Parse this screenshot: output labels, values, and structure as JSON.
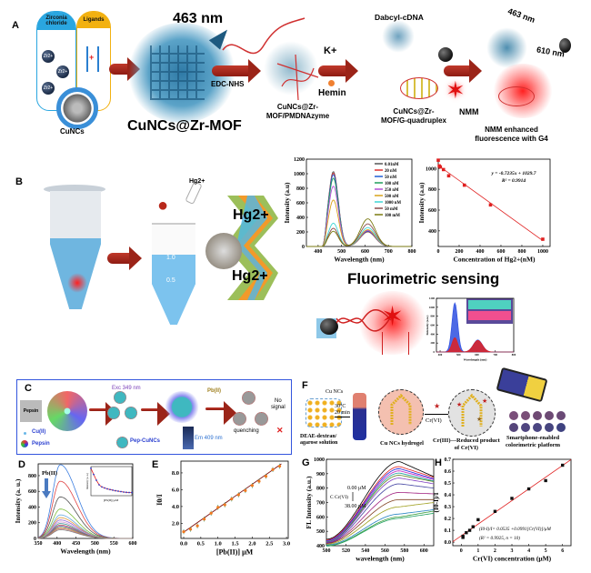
{
  "panel_a": {
    "label": "A",
    "zirconia_label": "Zirconia chloride",
    "ligands_label": "Ligands",
    "ion_label": "Zr2+",
    "cuncs_label": "CuNCs",
    "emission_463": "463 nm",
    "mof_label": "CuNCs@Zr-MOF",
    "edc_label": "EDC-NHS",
    "pmdnazyme_label": "CuNCs@Zr-\nMOF/PMDNAzyme",
    "k_label": "K+",
    "hemin_label": "Hemin",
    "gquad_label": "CuNCs@Zr-\nMOF/G-quadruplex",
    "dabcyl_label": "Dabcyl-cDNA",
    "nmm_label": "NMM",
    "final_463": "463 nm",
    "final_610": "610 nm",
    "final_label": "NMM enhanced\nfluorescence with G4"
  },
  "panel_b": {
    "label": "B",
    "hg_small": "Hg2+",
    "hg_big_1": "Hg2+",
    "hg_big_2": "Hg2+",
    "tube_mark_1": "1.0",
    "tube_mark_2": "0.5",
    "sensing_title": "Fluorimetric sensing"
  },
  "panel_c": {
    "label": "C",
    "pepsin_photo": "Pepsin",
    "exc_label": "Exc 349 nm",
    "pb_label": "Pb(II)",
    "no_signal": "No\nsignal",
    "quenching": "quenching",
    "em_label": "Em 409 nm",
    "legend_cu": "Cu(II)",
    "legend_pepsin": "Pepsin",
    "legend_pepcuncs": "Pep-CuNCs"
  },
  "panel_f": {
    "label": "F",
    "cu_ncs": "Cu NCs",
    "condition": "30°C\n20 min",
    "solution": "DEAE-dextran/\nagarose solution",
    "hydrogel": "Cu NCs hydrogel",
    "cr6": "Cr(VI)",
    "cr3": "Cr(III)—Reduced product\nof Cr(VI)",
    "platform": "Smartphone-enabled\ncolorimetric platform",
    "dot_colors": [
      "#7a4f7a",
      "#7a4f78",
      "#6f4a74",
      "#6c4a74",
      "#6a4a76",
      "#55457a",
      "#504680",
      "#4b4682",
      "#47457f",
      "#3f4280"
    ]
  },
  "colors": {
    "arrow": "#a8281b",
    "glow_blue": "#3f8fb8",
    "glow_red": "#ff2020",
    "panel_c_border": "#3355dd"
  },
  "chart_data": [
    {
      "id": "b1",
      "type": "line",
      "xlabel": "Wavelength (nm)",
      "ylabel": "Intensity (a.u)",
      "xlim": [
        350,
        800
      ],
      "ylim": [
        0,
        1200
      ],
      "xticks": [
        "400",
        "500",
        "600",
        "700",
        "800"
      ],
      "yticks": [
        "0",
        "200",
        "400",
        "600",
        "800",
        "1000",
        "1200"
      ],
      "legend": "top-right",
      "peak_wavelengths_nm": [
        465,
        612
      ],
      "series": [
        {
          "name": "0.01nM",
          "color": "#555555",
          "peaks": [
            1030,
            200
          ]
        },
        {
          "name": "20 nM",
          "color": "#e03030",
          "peaks": [
            1010,
            205
          ]
        },
        {
          "name": "50 nM",
          "color": "#1f5fd6",
          "peaks": [
            990,
            210
          ]
        },
        {
          "name": "100 nM",
          "color": "#1f9e5a",
          "peaks": [
            940,
            225
          ]
        },
        {
          "name": "250 nM",
          "color": "#b44fd6",
          "peaks": [
            830,
            220
          ]
        },
        {
          "name": "500 nM",
          "color": "#d9a21a",
          "peaks": [
            640,
            230
          ]
        },
        {
          "name": "1000 nM",
          "color": "#3fd6d6",
          "peaks": [
            320,
            260
          ]
        },
        {
          "name": "50 mM",
          "color": "#8a4a4a",
          "peaks": [
            250,
            310
          ]
        },
        {
          "name": "100 mM",
          "color": "#7a7a10",
          "peaks": [
            210,
            380
          ]
        }
      ]
    },
    {
      "id": "b2",
      "type": "scatter",
      "xlabel": "Concentration of Hg2+(nM)",
      "ylabel": "Intensity (a.u)",
      "xlim": [
        0,
        1070
      ],
      "ylim": [
        250,
        1090
      ],
      "xticks": [
        "0",
        "200",
        "400",
        "600",
        "800",
        "1000"
      ],
      "yticks": [
        "400",
        "600",
        "800",
        "1000"
      ],
      "x": [
        0,
        10,
        20,
        50,
        100,
        250,
        500,
        1000
      ],
      "y": [
        1080,
        1025,
        1015,
        990,
        930,
        840,
        650,
        320
      ],
      "fit": {
        "slope": -0.7235,
        "intercept": 1029.7
      },
      "equation": "y = -0.7235x + 1029.7",
      "r2": "R² = 0.9914",
      "color": "#e02020"
    },
    {
      "id": "sensing",
      "type": "area",
      "xlabel": "Wavelength (nm)",
      "ylabel": "Intensity (a.u.)",
      "xlim": [
        380,
        800
      ],
      "ylim": [
        0,
        1200
      ],
      "xticks": [
        "400",
        "500",
        "600",
        "700",
        "800"
      ],
      "yticks": [
        "0",
        "200",
        "400",
        "600",
        "800",
        "1000",
        "1200"
      ],
      "series": [
        {
          "color": "#2d4fe0",
          "peaks": [
            1100,
            270
          ]
        },
        {
          "color": "#e02020",
          "peaks": [
            320,
            260
          ]
        }
      ]
    },
    {
      "id": "d",
      "type": "line",
      "xlabel": "Wavelength (nm)",
      "ylabel": "Intensity (a. u.)",
      "xlim": [
        350,
        600
      ],
      "ylim": [
        0,
        950
      ],
      "xticks": [
        "350",
        "400",
        "450",
        "500",
        "550",
        "600"
      ],
      "yticks": [
        "0",
        "200",
        "400",
        "600",
        "800"
      ],
      "annotation": "Pb(II)",
      "peak_wavelength_nm": 408,
      "peaks": [
        940,
        730,
        530,
        375,
        300,
        265,
        235,
        210,
        190,
        170,
        155,
        140,
        125,
        110
      ],
      "colors": [
        "#3d7fe0",
        "#e04545",
        "#555555",
        "#7fbf3f",
        "#66aadd",
        "#e09a3a",
        "#9a6ad6",
        "#d6a0d0",
        "#3a9a9a",
        "#c05050",
        "#6060c0",
        "#a0a030",
        "#d07070",
        "#808080"
      ],
      "inset": {
        "xlabel": "[Pb(II)] μM",
        "ylabel": "Intensity (a. u.)",
        "xlim": [
          0,
          3.0
        ],
        "ylim": [
          0,
          1000
        ],
        "xticks": [
          "0.0",
          "0.5",
          "1.0",
          "1.5",
          "2.0",
          "2.5",
          "3.0"
        ],
        "yticks": [
          "0",
          "500",
          "1000"
        ],
        "x": [
          0,
          0.2,
          0.4,
          0.6,
          0.8,
          1.0,
          1.2,
          1.4,
          1.6,
          1.8,
          2.0,
          2.2,
          2.4,
          2.6,
          2.8,
          3.0
        ],
        "y": [
          940,
          730,
          530,
          375,
          300,
          265,
          235,
          210,
          190,
          170,
          155,
          140,
          125,
          115,
          110,
          108
        ]
      }
    },
    {
      "id": "e",
      "type": "scatter",
      "xlabel": "[Pb(II)] μM",
      "ylabel": "I0/I",
      "xlim": [
        -0.08,
        3.05
      ],
      "ylim": [
        0.2,
        9.4
      ],
      "xticks": [
        "0.0",
        "0.5",
        "1.0",
        "1.5",
        "2.0",
        "2.5",
        "3.0"
      ],
      "yticks": [
        "2.0",
        "4.0",
        "6.0",
        "8.0"
      ],
      "x": [
        0,
        0.2,
        0.4,
        0.6,
        0.8,
        1.0,
        1.2,
        1.4,
        1.6,
        1.8,
        2.0,
        2.2,
        2.4,
        2.6,
        2.8
      ],
      "y": [
        1.0,
        1.3,
        1.7,
        2.5,
        3.2,
        3.9,
        4.2,
        4.9,
        5.4,
        5.9,
        6.5,
        7.0,
        7.6,
        8.4,
        8.8
      ],
      "error": [
        0.3,
        0.3,
        0.3,
        0.3,
        0.3,
        0.3,
        0.3,
        0.3,
        0.3,
        0.3,
        0.3,
        0.3,
        0.3,
        0.3,
        0.3
      ],
      "fit": {
        "slope": 2.85,
        "intercept": 0.95
      },
      "color": "#f07a20"
    },
    {
      "id": "g",
      "type": "line",
      "xlabel": "wavelength (nm)",
      "ylabel": "FL Intensity (a.u.)",
      "xlim": [
        500,
        610
      ],
      "ylim": [
        400,
        1000
      ],
      "xticks": [
        "500",
        "520",
        "540",
        "560",
        "580",
        "600"
      ],
      "yticks": [
        "400",
        "500",
        "600",
        "700",
        "800",
        "900",
        "1000"
      ],
      "annotation_top": "0.00 μM",
      "annotation_var": "C Cr(VI)",
      "annotation_bottom": "38.00 μM",
      "curves_at_500_575_610": [
        [
          445,
          985,
          880
        ],
        [
          440,
          950,
          875
        ],
        [
          435,
          935,
          865
        ],
        [
          430,
          920,
          860
        ],
        [
          428,
          905,
          850
        ],
        [
          426,
          890,
          845
        ],
        [
          424,
          870,
          830
        ],
        [
          420,
          830,
          800
        ],
        [
          418,
          770,
          760
        ],
        [
          415,
          720,
          720
        ],
        [
          410,
          670,
          700
        ],
        [
          405,
          620,
          650
        ],
        [
          400,
          600,
          640
        ],
        [
          398,
          590,
          625
        ]
      ],
      "colors": [
        "#000000",
        "#e02020",
        "#2020e0",
        "#c020c0",
        "#20a0a0",
        "#608020",
        "#8040c0",
        "#4040a0",
        "#a02080",
        "#804020",
        "#a0a020",
        "#2080c0",
        "#40a040",
        "#20a060"
      ]
    },
    {
      "id": "h",
      "type": "scatter",
      "xlabel": "Cr(VI) concentration (μM)",
      "ylabel": "(I0-I)/I",
      "xlim": [
        -0.5,
        6.5
      ],
      "ylim": [
        -0.03,
        0.7
      ],
      "xticks": [
        "0",
        "1",
        "2",
        "3",
        "4",
        "5",
        "6"
      ],
      "yticks": [
        "0.0",
        "0.1",
        "0.2",
        "0.3",
        "0.4",
        "0.5",
        "0.6",
        "0.7"
      ],
      "x": [
        0.1,
        0.1,
        0.3,
        0.5,
        0.7,
        1,
        2,
        3,
        4,
        5,
        6
      ],
      "y": [
        0.04,
        0.05,
        0.08,
        0.1,
        0.13,
        0.19,
        0.26,
        0.37,
        0.45,
        0.52,
        0.65
      ],
      "fit": {
        "slope": 0.0991,
        "intercept": 0.0535
      },
      "equation": "(I0-I)/I= 0.0535 +0.0991[Cr(VI)]/μM",
      "r2": "(R² = 0.9925, n = 10)",
      "color": "#111111",
      "line_color": "#e02020"
    }
  ]
}
